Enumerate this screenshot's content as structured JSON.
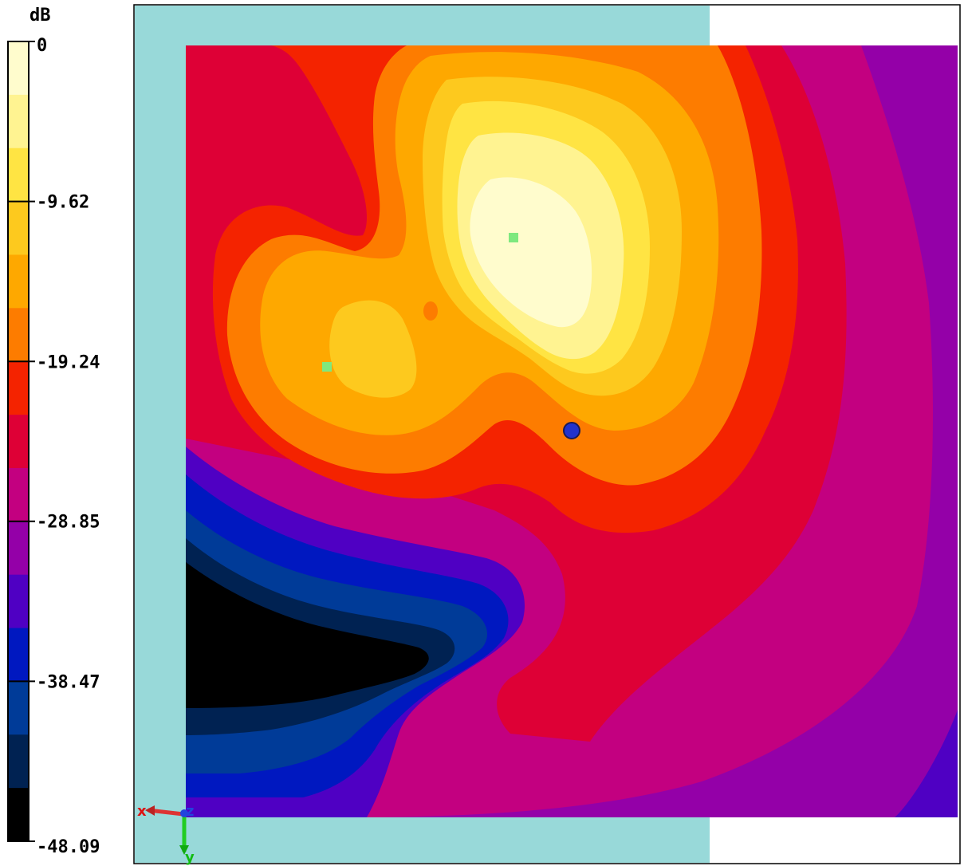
{
  "chart_data": {
    "type": "heatmap",
    "title": "",
    "colorbar": {
      "unit_label": "dB",
      "max": 0,
      "min": -48.09,
      "tick_labels": [
        "0",
        "-9.62",
        "-19.24",
        "-28.85",
        "-38.47",
        "-48.09"
      ],
      "tick_values": [
        0,
        -9.62,
        -19.24,
        -28.85,
        -38.47,
        -48.09
      ],
      "band_colors": [
        "#fffccd",
        "#fff391",
        "#ffe443",
        "#fdc91e",
        "#fea800",
        "#fd7c00",
        "#f42300",
        "#de0036",
        "#c30080",
        "#9400a8",
        "#4f00c3",
        "#0018c0",
        "#003b98",
        "#002252",
        "#000000"
      ]
    },
    "axes": {
      "x": "x",
      "y": "y",
      "z": "z"
    },
    "markers": [
      {
        "kind": "sample-point",
        "color": "#7ee87e"
      },
      {
        "kind": "sample-point",
        "color": "#7ee87e"
      },
      {
        "kind": "probe-sphere",
        "color": "#2233cc"
      }
    ],
    "colors": {
      "background_plane": "#98d9d9",
      "outline": "#000000"
    }
  }
}
